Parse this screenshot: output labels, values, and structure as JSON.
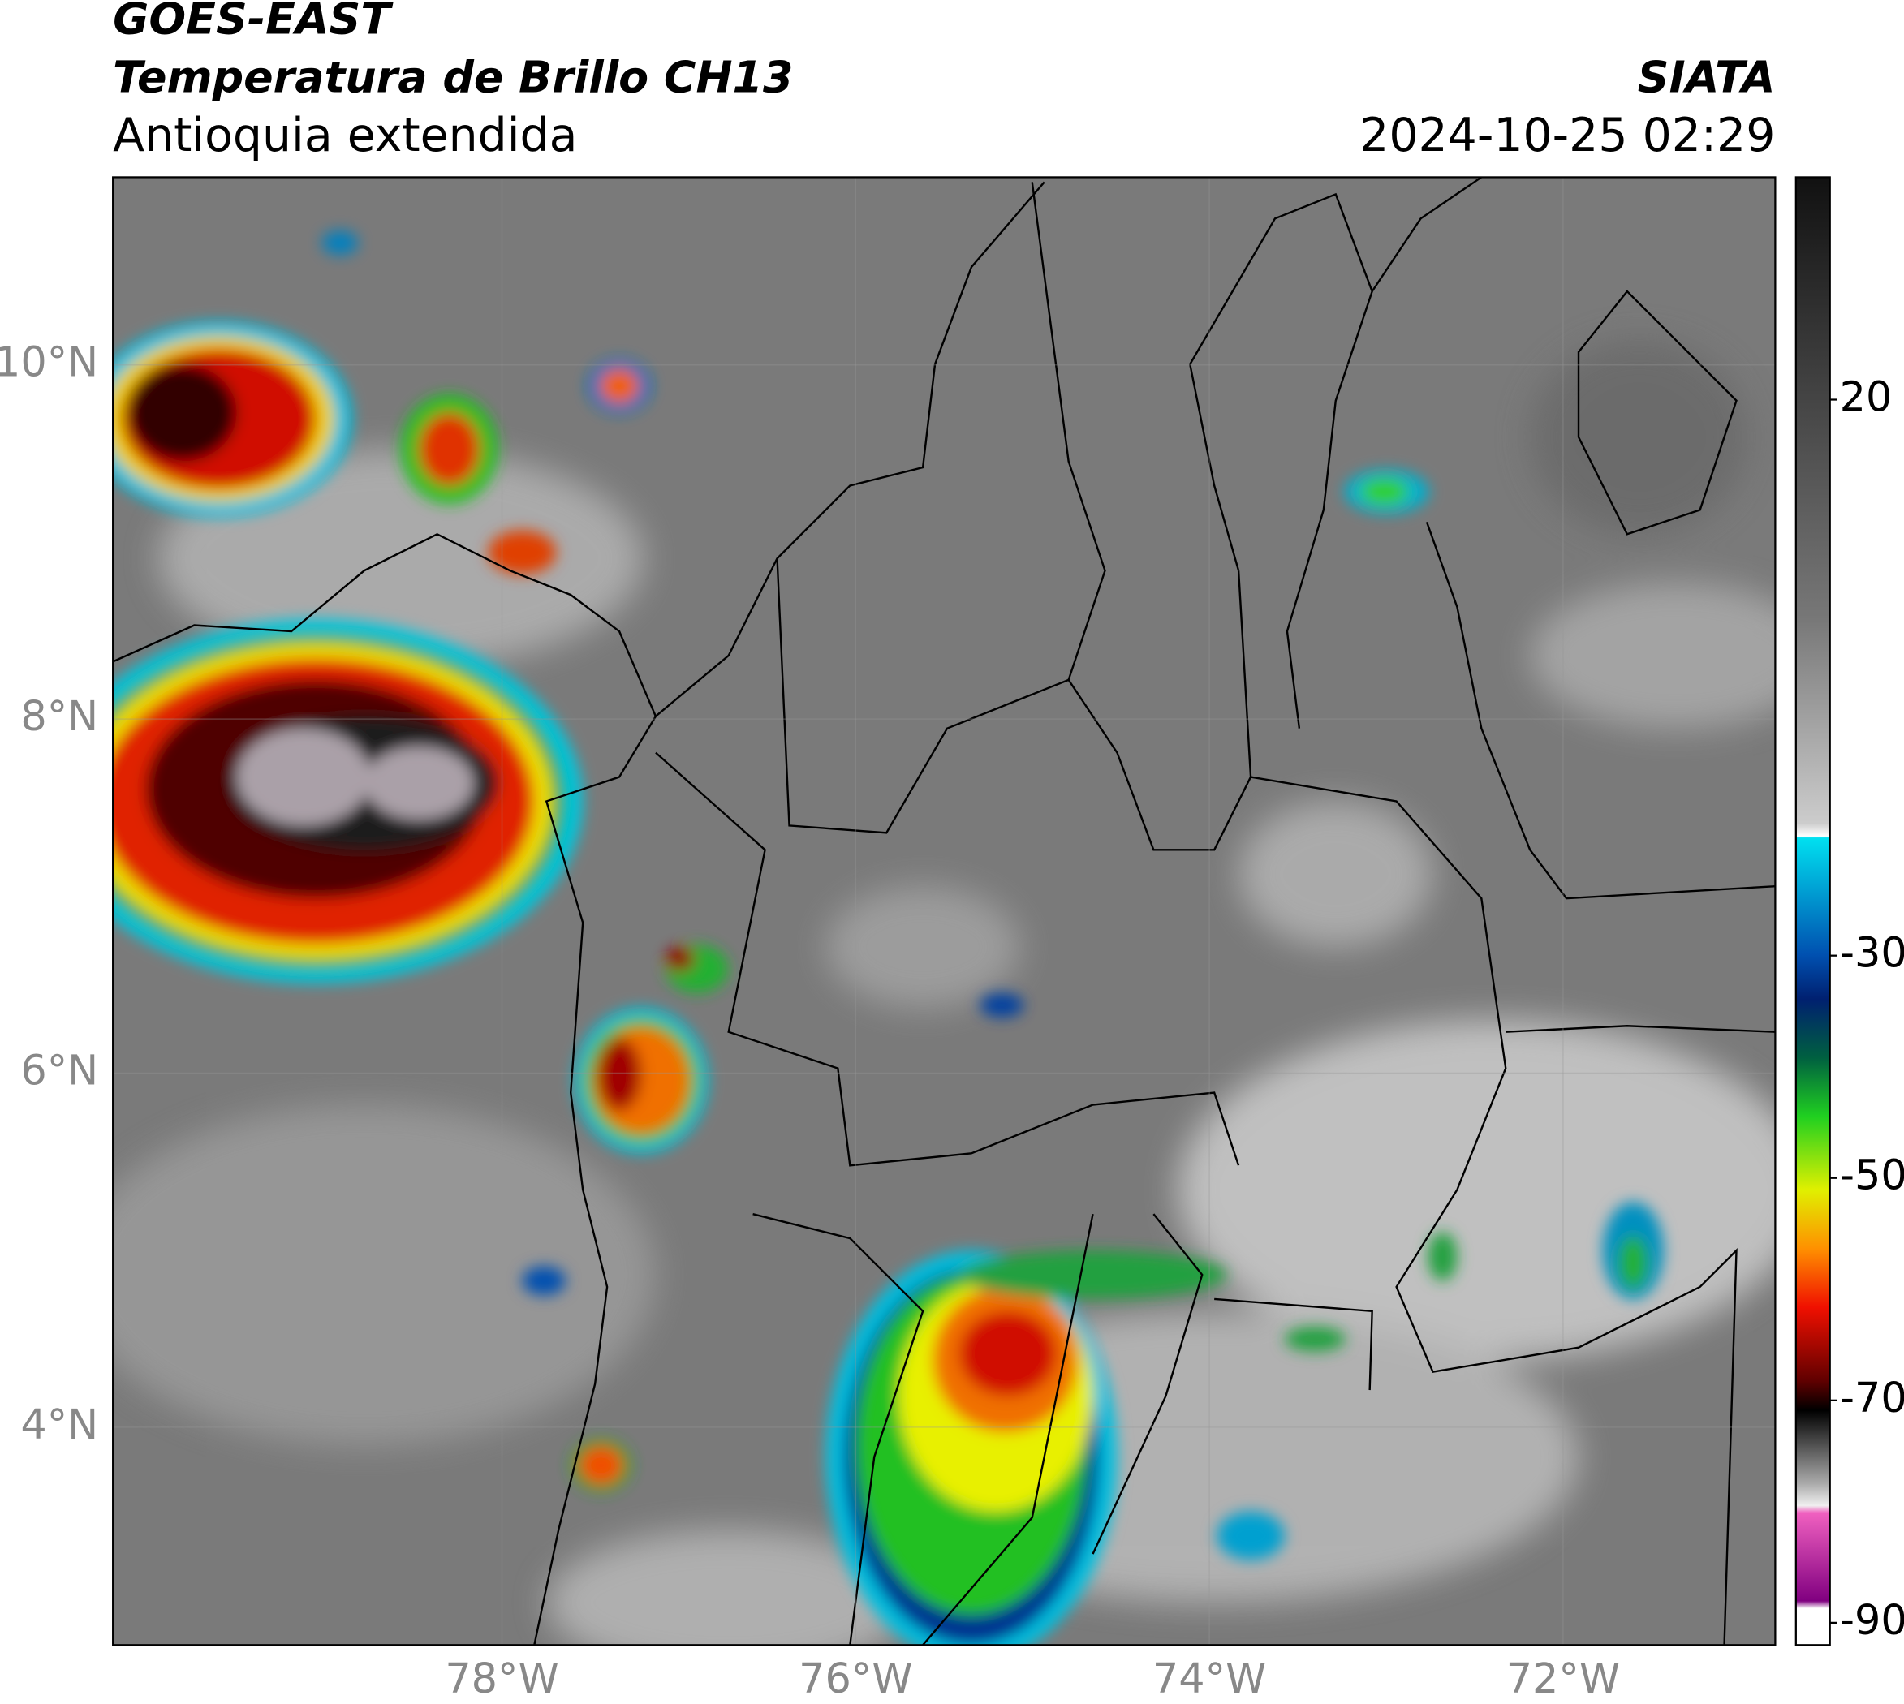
{
  "header": {
    "title": "GOES-EAST",
    "subtitle": "Temperatura de Brillo CH13",
    "region": "Antioquia extendida",
    "source": "SIATA",
    "datetime": "2024-10-25 02:29"
  },
  "map": {
    "xlim": [
      -80.2,
      -70.8
    ],
    "ylim": [
      2.77,
      11.06
    ],
    "grid": true,
    "xticks": [
      {
        "value": -78,
        "label": "78°W"
      },
      {
        "value": -76,
        "label": "76°W"
      },
      {
        "value": -74,
        "label": "74°W"
      },
      {
        "value": -72,
        "label": "72°W"
      }
    ],
    "yticks": [
      {
        "value": 10,
        "label": "10°N"
      },
      {
        "value": 8,
        "label": "8°N"
      },
      {
        "value": 6,
        "label": "6°N"
      },
      {
        "value": 4,
        "label": "4°N"
      }
    ]
  },
  "colorbar": {
    "clim": [
      -92,
      40
    ],
    "ticks": [
      20,
      -30,
      -50,
      -70,
      -90
    ]
  }
}
